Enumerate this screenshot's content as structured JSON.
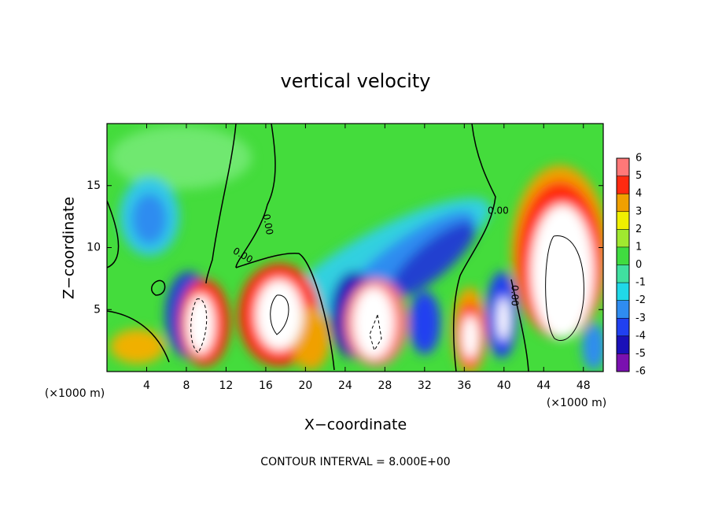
{
  "chart_data": {
    "type": "contour",
    "title": "vertical velocity",
    "x_label": "X−coordinate",
    "y_label": "Z−coordinate",
    "x_unit": "(×1000 m)",
    "y_unit": "(×1000 m)",
    "xlim": [
      0,
      50
    ],
    "xticks": [
      4,
      8,
      12,
      16,
      20,
      24,
      28,
      32,
      36,
      40,
      44,
      48
    ],
    "ylim": [
      0,
      20
    ],
    "yticks": [
      5,
      10,
      15
    ],
    "colorbar": {
      "ticks": [
        -6,
        -5,
        -4,
        -3,
        -2,
        -1,
        0,
        1,
        2,
        3,
        4,
        5,
        6
      ],
      "colors": [
        "#7a10b0",
        "#1a10b8",
        "#2040f0",
        "#2f8cf0",
        "#20d8e8",
        "#40e0a0",
        "#40dc40",
        "#a0e830",
        "#f0f000",
        "#f0a000",
        "#ff2a10",
        "#ff7878"
      ]
    },
    "contour_labels": [
      "0.00",
      "0.00",
      "0.00",
      "0.00"
    ],
    "footer": "CONTOUR INTERVAL = 8.000E+00"
  }
}
